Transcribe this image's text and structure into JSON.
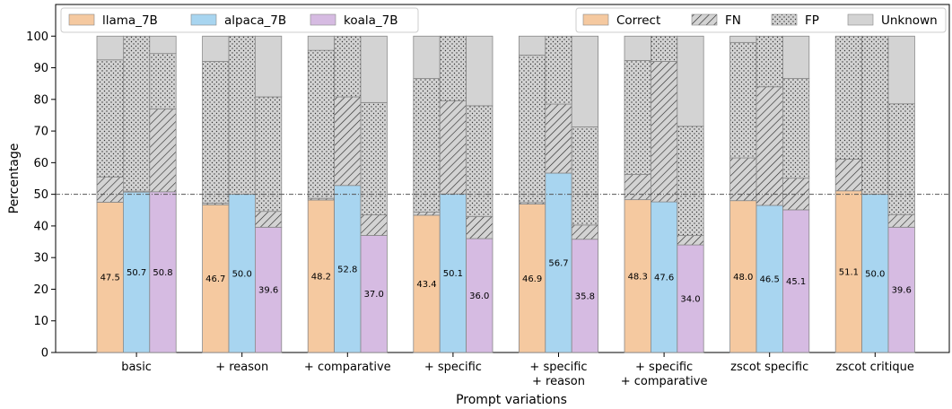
{
  "chart_data": {
    "type": "bar",
    "subtype": "stacked-grouped",
    "xlabel": "Prompt variations",
    "ylabel": "Percentage",
    "ylim": [
      0,
      110
    ],
    "yticks": [
      0,
      10,
      20,
      30,
      40,
      50,
      60,
      70,
      80,
      90,
      100
    ],
    "reference_line": 50,
    "categories": [
      [
        "basic"
      ],
      [
        "+ reason"
      ],
      [
        "+ comparative"
      ],
      [
        "+ specific"
      ],
      [
        "+ specific",
        "+ reason"
      ],
      [
        "+ specific",
        "+ comparative"
      ],
      [
        "zscot specific"
      ],
      [
        "zscot critique"
      ]
    ],
    "models": [
      {
        "name": "llama_7B",
        "color": "#f5c9a0"
      },
      {
        "name": "alpaca_7B",
        "color": "#a8d5f0"
      },
      {
        "name": "koala_7B",
        "color": "#d6bbe2"
      }
    ],
    "segments": [
      {
        "name": "Correct",
        "fill": "model-color"
      },
      {
        "name": "FN",
        "fill": "hatch-diagonal"
      },
      {
        "name": "FP",
        "fill": "hatch-dots"
      },
      {
        "name": "Unknown",
        "fill": "#d3d3d3"
      }
    ],
    "series": [
      {
        "name": "llama_7B",
        "correct": [
          47.5,
          46.7,
          48.2,
          43.4,
          46.9,
          48.3,
          48.0,
          51.1
        ],
        "fn": [
          8,
          0.5,
          0.5,
          1,
          0.5,
          8,
          13.5,
          10
        ],
        "fp": [
          37,
          44.8,
          46.8,
          42.2,
          46.6,
          36,
          36.5,
          38.9
        ]
      },
      {
        "name": "alpaca_7B",
        "correct": [
          50.7,
          50.0,
          52.8,
          50.1,
          56.7,
          47.6,
          46.5,
          50.0
        ],
        "fn": [
          0.3,
          0,
          28,
          29.5,
          21.8,
          44.4,
          37.5,
          0
        ],
        "fp": [
          49,
          50,
          19.2,
          20.4,
          21.5,
          8,
          16,
          50
        ]
      },
      {
        "name": "koala_7B",
        "correct": [
          50.8,
          39.6,
          37.0,
          36.0,
          35.8,
          34.0,
          45.1,
          39.6
        ],
        "fn": [
          26.2,
          5,
          6.5,
          7,
          4.5,
          3,
          10,
          4
        ],
        "fp": [
          17.5,
          36.2,
          35.5,
          35,
          31,
          34.5,
          31.5,
          35
        ]
      }
    ],
    "grid": false,
    "legend_models_position": "top-left",
    "legend_segments_position": "top-right"
  }
}
